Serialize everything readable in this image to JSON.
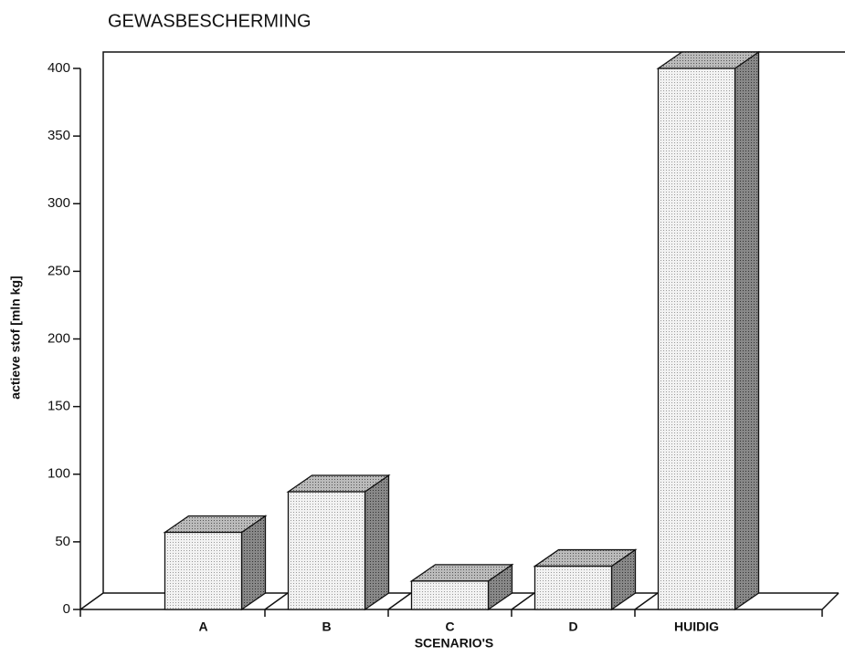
{
  "chart_data": {
    "type": "bar",
    "title": "GEWASBESCHERMING",
    "y_label": "actieve stof [mln kg]",
    "x_label": "SCENARIO'S",
    "categories": [
      "A",
      "B",
      "C",
      "D",
      "HUIDIG"
    ],
    "values": [
      57,
      87,
      21,
      32,
      400
    ],
    "ylim": [
      0,
      400
    ],
    "yticks": [
      0,
      50,
      100,
      150,
      200,
      250,
      300,
      350,
      400
    ]
  }
}
